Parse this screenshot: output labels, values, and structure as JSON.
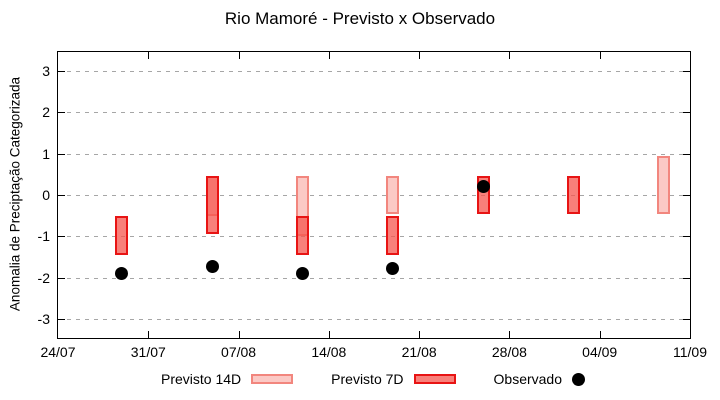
{
  "window": {
    "title": "Rio Mamoré - Previsto x Observado"
  },
  "chart_data": {
    "type": "bar",
    "title": "Rio Mamoré - Previsto x Observado",
    "xlabel": "",
    "ylabel": "Anomalia de Preciptação Categorizada",
    "ylim": [
      -3.46,
      3.46
    ],
    "yticks": [
      -3,
      -2,
      -1,
      0,
      1,
      2,
      3
    ],
    "xlim_days": [
      0,
      49
    ],
    "xticks": [
      {
        "day": 0,
        "label": "24/07"
      },
      {
        "day": 7,
        "label": "31/07"
      },
      {
        "day": 14,
        "label": "07/08"
      },
      {
        "day": 21,
        "label": "14/08"
      },
      {
        "day": 28,
        "label": "21/08"
      },
      {
        "day": 35,
        "label": "28/08"
      },
      {
        "day": 42,
        "label": "04/09"
      },
      {
        "day": 49,
        "label": "11/09"
      }
    ],
    "grid": {
      "horizontal": true,
      "style": "dashed",
      "color": "#a6a6a6"
    },
    "legend_position": "bottom-center",
    "series": [
      {
        "name": "Previsto 14D",
        "type": "range-bar",
        "fill": "#fbc9c5",
        "border": "#f2867e",
        "bars": [
          {
            "date": "05/08",
            "day": 12,
            "low": -0.5,
            "high": 0.45
          },
          {
            "date": "12/08",
            "day": 19,
            "low": -1.0,
            "high": 0.45
          },
          {
            "date": "19/08",
            "day": 26,
            "low": -0.45,
            "high": 0.45
          },
          {
            "date": "09/09",
            "day": 47,
            "low": -0.45,
            "high": 0.95
          }
        ]
      },
      {
        "name": "Previsto 7D",
        "type": "range-bar",
        "fill": "rgba(246,85,78,0.75)",
        "border": "#e81414",
        "bars": [
          {
            "date": "29/07",
            "day": 5,
            "low": -1.45,
            "high": -0.5
          },
          {
            "date": "05/08",
            "day": 12,
            "low": -0.95,
            "high": 0.45
          },
          {
            "date": "12/08",
            "day": 19,
            "low": -1.45,
            "high": -0.5
          },
          {
            "date": "19/08",
            "day": 26,
            "low": -1.45,
            "high": -0.5
          },
          {
            "date": "26/08",
            "day": 33,
            "low": -0.45,
            "high": 0.45
          },
          {
            "date": "02/09",
            "day": 40,
            "low": -0.45,
            "high": 0.45
          }
        ]
      },
      {
        "name": "Observado",
        "type": "scatter",
        "color": "#000000",
        "points": [
          {
            "date": "29/07",
            "day": 5,
            "value": -1.9
          },
          {
            "date": "05/08",
            "day": 12,
            "value": -1.75
          },
          {
            "date": "12/08",
            "day": 19,
            "value": -1.9
          },
          {
            "date": "19/08",
            "day": 26,
            "value": -1.8
          },
          {
            "date": "26/08",
            "day": 33,
            "value": 0.2
          }
        ]
      }
    ]
  },
  "legend": {
    "items": [
      {
        "label": "Previsto 14D",
        "swatch": "bar-14d"
      },
      {
        "label": "Previsto 7D",
        "swatch": "bar-7d"
      },
      {
        "label": "Observado",
        "swatch": "dot"
      }
    ]
  }
}
